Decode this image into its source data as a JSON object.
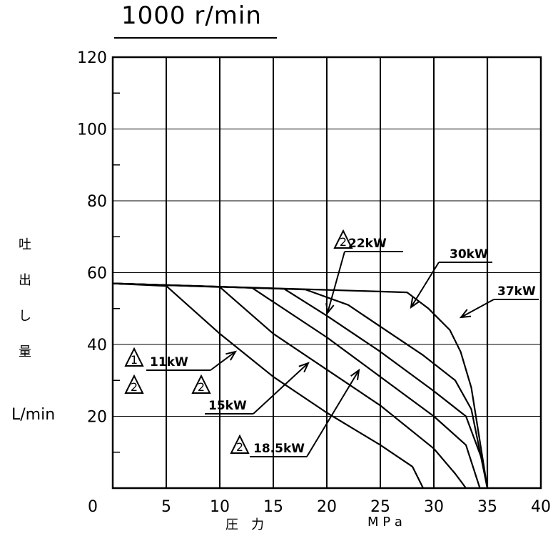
{
  "chart_data": {
    "type": "line",
    "title": "1000 r/min",
    "ylabel_chars": [
      "吐",
      "出",
      "し",
      "量"
    ],
    "ylabel_unit": "L/min",
    "xlabel_left": "圧　力",
    "xlabel_right": "M P a",
    "xlim": [
      0,
      40
    ],
    "ylim": [
      0,
      120
    ],
    "x_ticks": [
      0,
      5,
      10,
      15,
      20,
      25,
      30,
      35,
      40
    ],
    "x_tick_labels": [
      "0",
      "5",
      "10",
      "15",
      "20",
      "25",
      "30",
      "35",
      "40"
    ],
    "y_ticks": [
      0,
      20,
      40,
      60,
      80,
      100,
      120
    ],
    "y_tick_labels": [
      "0",
      "20",
      "40",
      "60",
      "80",
      "100",
      "120"
    ],
    "grid": true,
    "series": [
      {
        "name": "11kW",
        "points": [
          [
            0,
            57
          ],
          [
            5,
            56.3
          ],
          [
            10,
            43
          ],
          [
            15,
            31
          ],
          [
            20,
            21
          ],
          [
            25,
            12
          ],
          [
            28,
            6
          ],
          [
            29,
            0
          ]
        ]
      },
      {
        "name": "15kW",
        "points": [
          [
            0,
            57
          ],
          [
            10,
            56
          ],
          [
            15,
            43
          ],
          [
            20,
            33
          ],
          [
            25,
            23
          ],
          [
            30,
            11
          ],
          [
            32,
            4
          ],
          [
            33,
            0
          ]
        ]
      },
      {
        "name": "18.5kW",
        "points": [
          [
            0,
            57
          ],
          [
            13,
            55.8
          ],
          [
            20,
            42
          ],
          [
            25,
            31
          ],
          [
            30,
            20
          ],
          [
            33,
            12
          ],
          [
            34.3,
            0
          ]
        ]
      },
      {
        "name": "22kW",
        "points": [
          [
            0,
            57
          ],
          [
            16,
            55.5
          ],
          [
            20,
            48
          ],
          [
            25,
            38
          ],
          [
            30,
            27
          ],
          [
            33,
            20
          ],
          [
            34.5,
            8
          ],
          [
            35,
            0
          ]
        ]
      },
      {
        "name": "30kW",
        "points": [
          [
            0,
            57
          ],
          [
            18,
            55.3
          ],
          [
            22,
            51
          ],
          [
            25,
            45
          ],
          [
            29,
            37
          ],
          [
            32,
            30
          ],
          [
            33.5,
            22
          ],
          [
            35,
            0
          ]
        ]
      },
      {
        "name": "37kW",
        "points": [
          [
            0,
            57
          ],
          [
            20,
            55.2
          ],
          [
            27.5,
            54.5
          ],
          [
            29.5,
            50
          ],
          [
            31.5,
            44
          ],
          [
            32.5,
            38
          ],
          [
            33.5,
            28
          ],
          [
            35,
            0
          ]
        ]
      }
    ],
    "annotations": [
      {
        "marks": [
          "1",
          "2"
        ],
        "text": "11kW"
      },
      {
        "marks": [
          "2"
        ],
        "text": "15kW"
      },
      {
        "marks": [
          "2"
        ],
        "text": "18.5kW"
      },
      {
        "marks": [
          "2"
        ],
        "text": "22kW"
      },
      {
        "marks": [],
        "text": "30kW"
      },
      {
        "marks": [],
        "text": "37kW"
      }
    ]
  }
}
